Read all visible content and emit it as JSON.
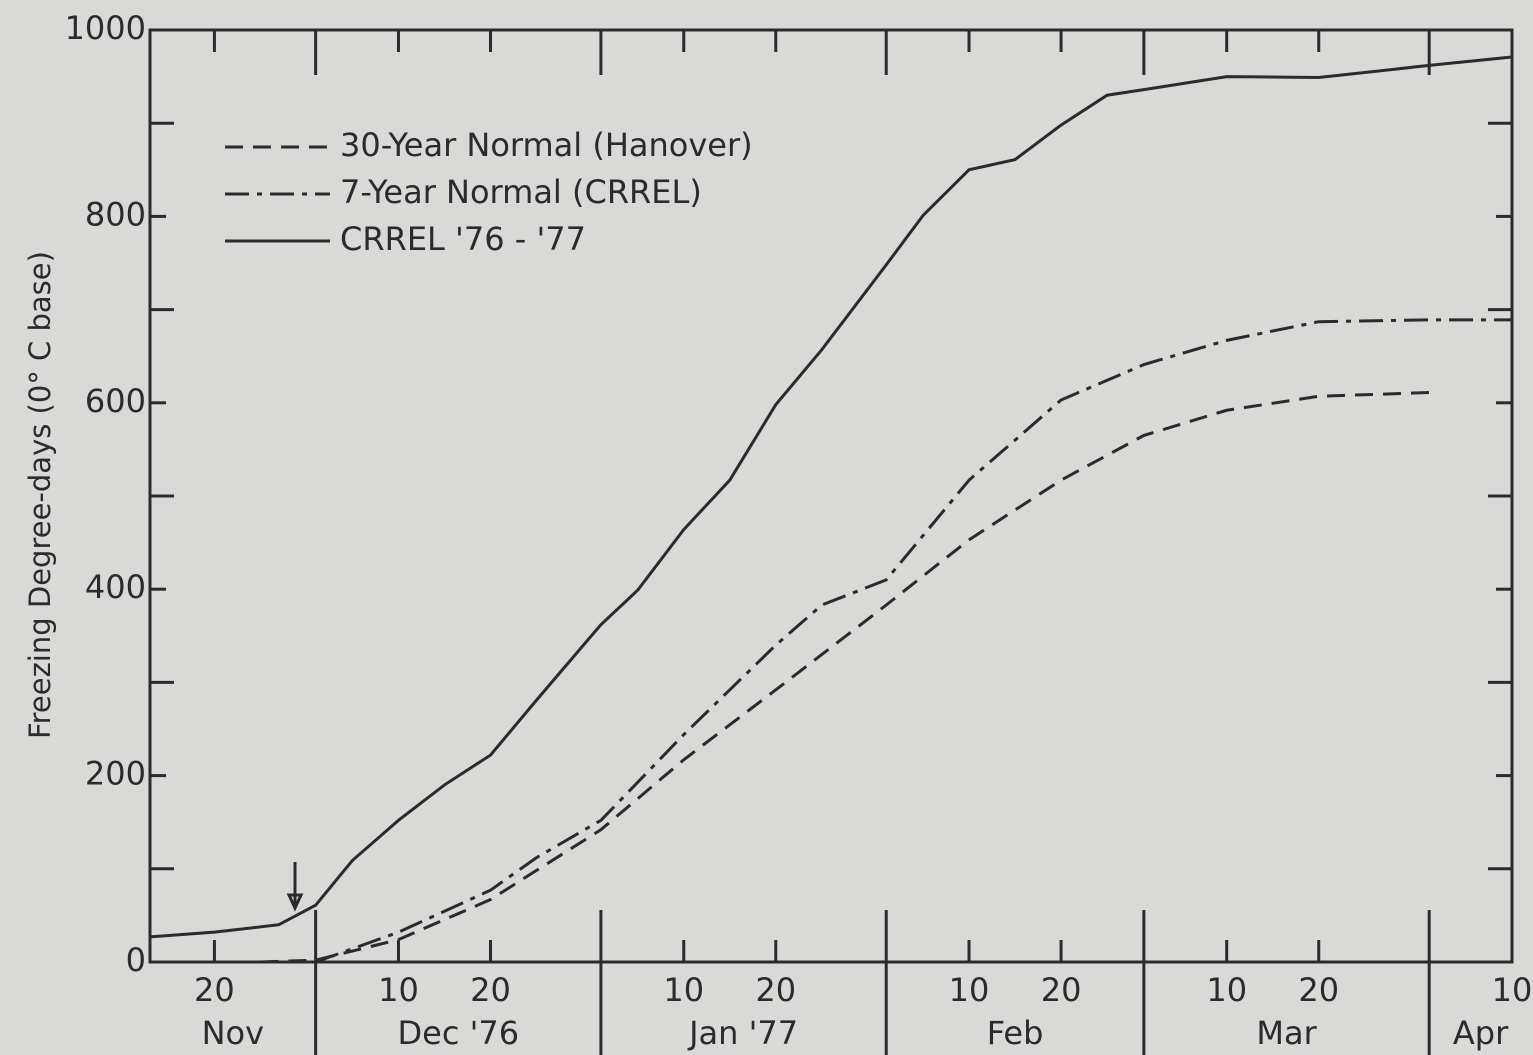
{
  "chart_data": {
    "type": "line",
    "y_label": "Freezing Degree-days (0° C base)",
    "xlim": [
      "1976-11-13",
      "1977-04-10"
    ],
    "ylim": [
      0,
      1000
    ],
    "yticks": [
      0,
      200,
      400,
      600,
      800,
      1000
    ],
    "yticks_minor": [
      100,
      300,
      500,
      700,
      900
    ],
    "xticks": [
      {
        "value": "1976-11-20",
        "label": "20"
      },
      {
        "value": "1976-12-10",
        "label": "10"
      },
      {
        "value": "1976-12-20",
        "label": "20"
      },
      {
        "value": "1977-01-10",
        "label": "10"
      },
      {
        "value": "1977-01-20",
        "label": "20"
      },
      {
        "value": "1977-02-10",
        "label": "10"
      },
      {
        "value": "1977-02-20",
        "label": "20"
      },
      {
        "value": "1977-03-10",
        "label": "10"
      },
      {
        "value": "1977-03-20",
        "label": "20"
      },
      {
        "value": "1977-04-10",
        "label": "10"
      }
    ],
    "month_ticks": [
      "1976-12-01",
      "1977-01-01",
      "1977-02-01",
      "1977-03-01",
      "1977-04-01"
    ],
    "month_labels": [
      "Nov",
      "Dec '76",
      "Jan '77",
      "Feb",
      "Mar",
      "Apr"
    ],
    "series": [
      {
        "name": "30-Year Normal (Hanover)",
        "color": "#2b2b2b",
        "style": "dashed",
        "x": [
          "1976-11-25",
          "1976-12-01",
          "1976-12-10",
          "1976-12-20",
          "1977-01-01",
          "1977-01-10",
          "1977-01-20",
          "1977-02-01",
          "1977-02-10",
          "1977-02-20",
          "1977-03-01",
          "1977-03-10",
          "1977-03-20",
          "1977-04-01"
        ],
        "values": [
          0,
          2,
          24,
          67,
          142,
          217,
          292,
          383,
          453,
          517,
          565,
          592,
          607,
          611
        ]
      },
      {
        "name": "7-Year Normal (CRREL)",
        "color": "#2b2b2b",
        "style": "dashdot",
        "x": [
          "1976-12-01",
          "1976-12-10",
          "1976-12-20",
          "1976-12-25",
          "1977-01-01",
          "1977-01-10",
          "1977-01-20",
          "1977-01-25",
          "1977-02-01",
          "1977-02-10",
          "1977-02-20",
          "1977-03-01",
          "1977-03-10",
          "1977-03-20",
          "1977-04-01",
          "1977-04-10"
        ],
        "values": [
          0,
          32,
          77,
          112,
          152,
          244,
          340,
          383,
          410,
          517,
          603,
          641,
          667,
          687,
          689,
          689
        ]
      },
      {
        "name": "CRREL '76 - '77",
        "color": "#2b2b2b",
        "style": "solid",
        "x": [
          "1976-11-13",
          "1976-11-20",
          "1976-11-27",
          "1976-12-01",
          "1976-12-05",
          "1976-12-10",
          "1976-12-15",
          "1976-12-20",
          "1976-12-25",
          "1977-01-01",
          "1977-01-05",
          "1977-01-10",
          "1977-01-15",
          "1977-01-20",
          "1977-01-25",
          "1977-02-01",
          "1977-02-05",
          "1977-02-10",
          "1977-02-15",
          "1977-02-20",
          "1977-02-25",
          "1977-03-01",
          "1977-03-10",
          "1977-03-20",
          "1977-04-01",
          "1977-04-10"
        ],
        "values": [
          27,
          32,
          40,
          61,
          109,
          152,
          190,
          222,
          281,
          362,
          399,
          464,
          517,
          598,
          657,
          748,
          801,
          850,
          861,
          898,
          930,
          936,
          950,
          949,
          962,
          971
        ]
      }
    ]
  }
}
